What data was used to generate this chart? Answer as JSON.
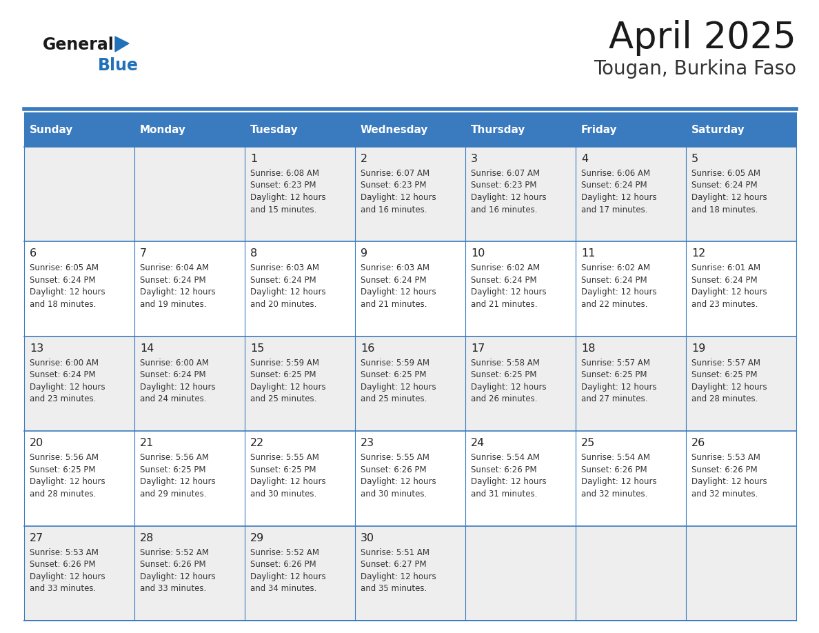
{
  "title": "April 2025",
  "subtitle": "Tougan, Burkina Faso",
  "days_of_week": [
    "Sunday",
    "Monday",
    "Tuesday",
    "Wednesday",
    "Thursday",
    "Friday",
    "Saturday"
  ],
  "header_bg": "#3a7abf",
  "header_text": "#ffffff",
  "row_bg_light": "#eeeeee",
  "row_bg_white": "#ffffff",
  "cell_border": "#3a7abf",
  "day_number_color": "#222222",
  "text_color": "#333333",
  "title_color": "#1a1a1a",
  "subtitle_color": "#333333",
  "logo_general_color": "#1a1a1a",
  "logo_blue_color": "#2272b9",
  "weeks": [
    [
      {
        "day": null,
        "sunrise": null,
        "sunset": null,
        "daylight": null
      },
      {
        "day": null,
        "sunrise": null,
        "sunset": null,
        "daylight": null
      },
      {
        "day": 1,
        "sunrise": "6:08 AM",
        "sunset": "6:23 PM",
        "daylight": "12 hours\nand 15 minutes."
      },
      {
        "day": 2,
        "sunrise": "6:07 AM",
        "sunset": "6:23 PM",
        "daylight": "12 hours\nand 16 minutes."
      },
      {
        "day": 3,
        "sunrise": "6:07 AM",
        "sunset": "6:23 PM",
        "daylight": "12 hours\nand 16 minutes."
      },
      {
        "day": 4,
        "sunrise": "6:06 AM",
        "sunset": "6:24 PM",
        "daylight": "12 hours\nand 17 minutes."
      },
      {
        "day": 5,
        "sunrise": "6:05 AM",
        "sunset": "6:24 PM",
        "daylight": "12 hours\nand 18 minutes."
      }
    ],
    [
      {
        "day": 6,
        "sunrise": "6:05 AM",
        "sunset": "6:24 PM",
        "daylight": "12 hours\nand 18 minutes."
      },
      {
        "day": 7,
        "sunrise": "6:04 AM",
        "sunset": "6:24 PM",
        "daylight": "12 hours\nand 19 minutes."
      },
      {
        "day": 8,
        "sunrise": "6:03 AM",
        "sunset": "6:24 PM",
        "daylight": "12 hours\nand 20 minutes."
      },
      {
        "day": 9,
        "sunrise": "6:03 AM",
        "sunset": "6:24 PM",
        "daylight": "12 hours\nand 21 minutes."
      },
      {
        "day": 10,
        "sunrise": "6:02 AM",
        "sunset": "6:24 PM",
        "daylight": "12 hours\nand 21 minutes."
      },
      {
        "day": 11,
        "sunrise": "6:02 AM",
        "sunset": "6:24 PM",
        "daylight": "12 hours\nand 22 minutes."
      },
      {
        "day": 12,
        "sunrise": "6:01 AM",
        "sunset": "6:24 PM",
        "daylight": "12 hours\nand 23 minutes."
      }
    ],
    [
      {
        "day": 13,
        "sunrise": "6:00 AM",
        "sunset": "6:24 PM",
        "daylight": "12 hours\nand 23 minutes."
      },
      {
        "day": 14,
        "sunrise": "6:00 AM",
        "sunset": "6:24 PM",
        "daylight": "12 hours\nand 24 minutes."
      },
      {
        "day": 15,
        "sunrise": "5:59 AM",
        "sunset": "6:25 PM",
        "daylight": "12 hours\nand 25 minutes."
      },
      {
        "day": 16,
        "sunrise": "5:59 AM",
        "sunset": "6:25 PM",
        "daylight": "12 hours\nand 25 minutes."
      },
      {
        "day": 17,
        "sunrise": "5:58 AM",
        "sunset": "6:25 PM",
        "daylight": "12 hours\nand 26 minutes."
      },
      {
        "day": 18,
        "sunrise": "5:57 AM",
        "sunset": "6:25 PM",
        "daylight": "12 hours\nand 27 minutes."
      },
      {
        "day": 19,
        "sunrise": "5:57 AM",
        "sunset": "6:25 PM",
        "daylight": "12 hours\nand 28 minutes."
      }
    ],
    [
      {
        "day": 20,
        "sunrise": "5:56 AM",
        "sunset": "6:25 PM",
        "daylight": "12 hours\nand 28 minutes."
      },
      {
        "day": 21,
        "sunrise": "5:56 AM",
        "sunset": "6:25 PM",
        "daylight": "12 hours\nand 29 minutes."
      },
      {
        "day": 22,
        "sunrise": "5:55 AM",
        "sunset": "6:25 PM",
        "daylight": "12 hours\nand 30 minutes."
      },
      {
        "day": 23,
        "sunrise": "5:55 AM",
        "sunset": "6:26 PM",
        "daylight": "12 hours\nand 30 minutes."
      },
      {
        "day": 24,
        "sunrise": "5:54 AM",
        "sunset": "6:26 PM",
        "daylight": "12 hours\nand 31 minutes."
      },
      {
        "day": 25,
        "sunrise": "5:54 AM",
        "sunset": "6:26 PM",
        "daylight": "12 hours\nand 32 minutes."
      },
      {
        "day": 26,
        "sunrise": "5:53 AM",
        "sunset": "6:26 PM",
        "daylight": "12 hours\nand 32 minutes."
      }
    ],
    [
      {
        "day": 27,
        "sunrise": "5:53 AM",
        "sunset": "6:26 PM",
        "daylight": "12 hours\nand 33 minutes."
      },
      {
        "day": 28,
        "sunrise": "5:52 AM",
        "sunset": "6:26 PM",
        "daylight": "12 hours\nand 33 minutes."
      },
      {
        "day": 29,
        "sunrise": "5:52 AM",
        "sunset": "6:26 PM",
        "daylight": "12 hours\nand 34 minutes."
      },
      {
        "day": 30,
        "sunrise": "5:51 AM",
        "sunset": "6:27 PM",
        "daylight": "12 hours\nand 35 minutes."
      },
      {
        "day": null,
        "sunrise": null,
        "sunset": null,
        "daylight": null
      },
      {
        "day": null,
        "sunrise": null,
        "sunset": null,
        "daylight": null
      },
      {
        "day": null,
        "sunrise": null,
        "sunset": null,
        "daylight": null
      }
    ]
  ]
}
